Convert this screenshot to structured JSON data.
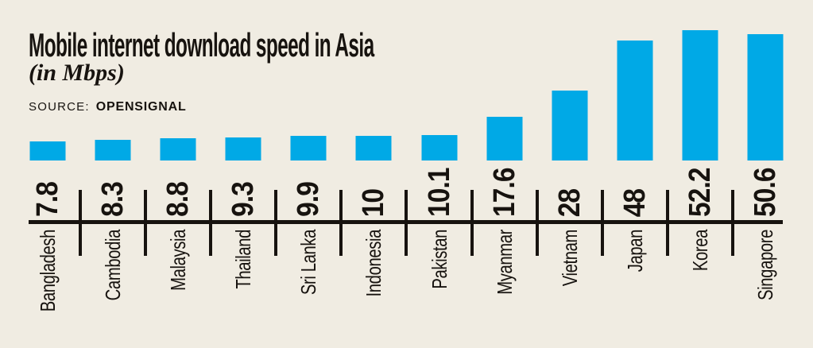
{
  "header": {
    "title": "Mobile internet download speed in Asia",
    "subtitle": "(in Mbps)",
    "source_label": "SOURCE:",
    "source_value": "OPENSIGNAL"
  },
  "chart_data": {
    "type": "bar",
    "title": "Mobile internet download speed in Asia",
    "subtitle": "(in Mbps)",
    "unit": "Mbps",
    "source": "OPENSIGNAL",
    "categories": [
      "Bangladesh",
      "Cambodia",
      "Malaysia",
      "Thailand",
      "Sri Lanka",
      "Indonesia",
      "Pakistan",
      "Myanmar",
      "Vietnam",
      "Japan",
      "Korea",
      "Singapore"
    ],
    "values": [
      7.8,
      8.3,
      8.8,
      9.3,
      9.9,
      10,
      10.1,
      17.6,
      28,
      48,
      52.2,
      50.6
    ],
    "value_labels": [
      "7.8",
      "8.3",
      "8.8",
      "9.3",
      "9.9",
      "10",
      "10.1",
      "17.6",
      "28",
      "48",
      "52.2",
      "50.6"
    ],
    "orientation": "vertical",
    "value_label_rotation_deg": -90,
    "category_label_rotation_deg": -90,
    "ylim": [
      0,
      55
    ],
    "grid": false,
    "legend": false,
    "axis": "bottom-only",
    "colors": {
      "bar": "#00a9e6",
      "background": "#f0ece2",
      "ink": "#17130f"
    }
  }
}
